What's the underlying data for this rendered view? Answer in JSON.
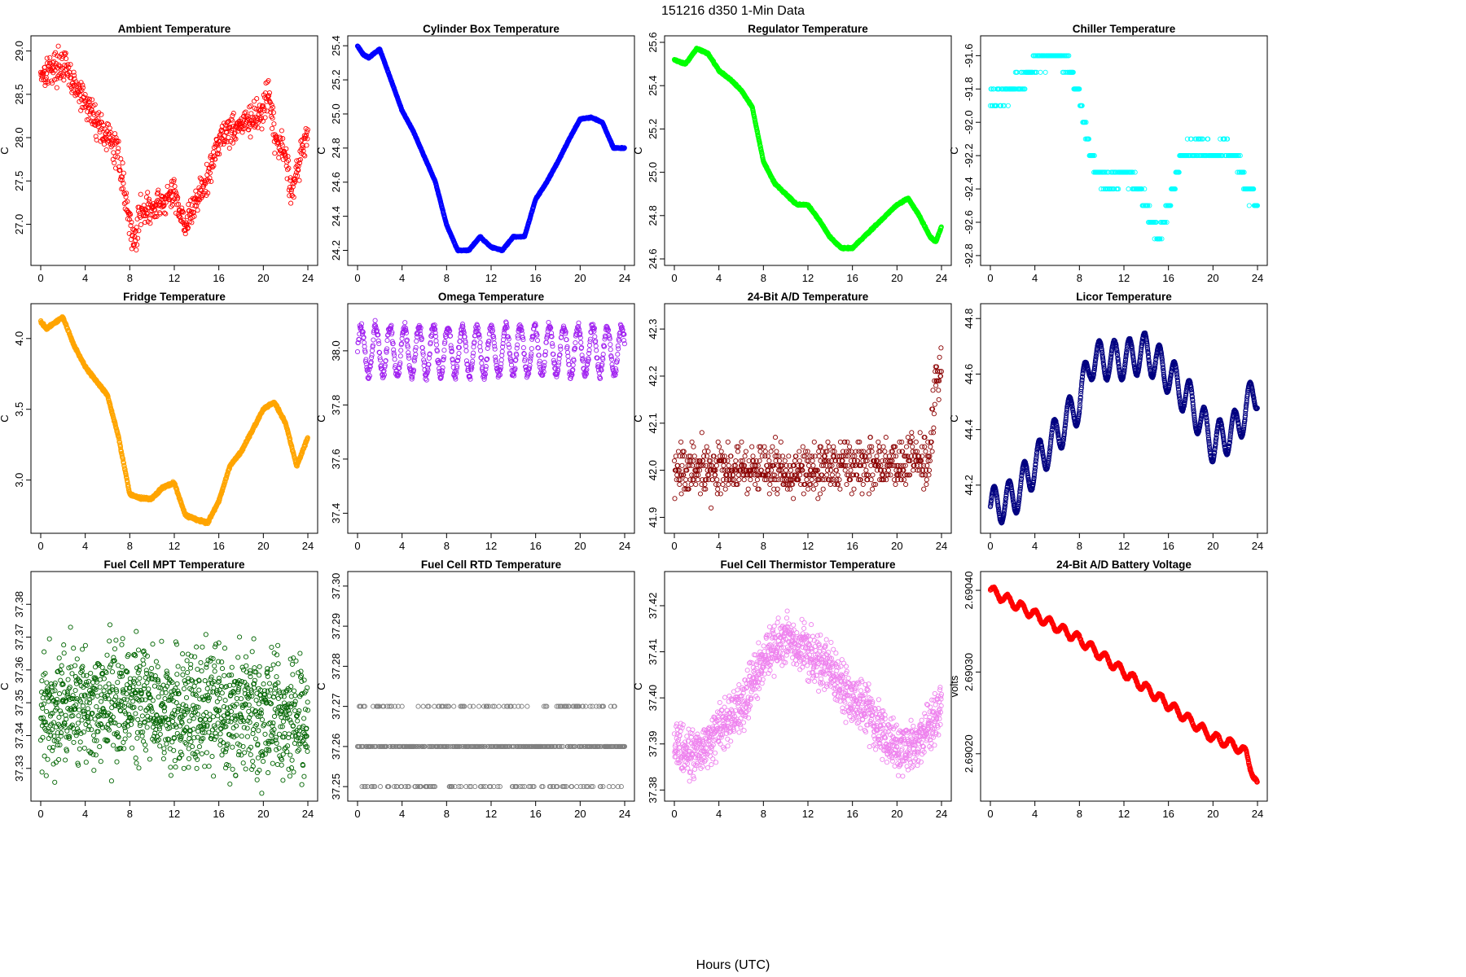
{
  "figure": {
    "title": "151216    d350    1-Min Data",
    "xlabel": "Hours (UTC)"
  },
  "chart_data": [
    {
      "type": "scatter",
      "title": "Ambient Temperature",
      "ylabel": "C",
      "color": "#ff0000",
      "xlim": [
        0,
        24
      ],
      "ylim": [
        26.6,
        29.1
      ],
      "xticks": [
        "0",
        "4",
        "8",
        "12",
        "16",
        "20",
        "24"
      ],
      "yticks": [
        "27.0",
        "27.5",
        "28.0",
        "28.5",
        "29.0"
      ],
      "x": [
        0,
        1,
        2,
        3,
        4,
        5,
        6,
        7,
        8,
        8.5,
        9,
        10,
        11,
        12,
        13,
        13.5,
        14,
        15,
        16,
        17,
        18,
        19,
        20,
        20.5,
        21,
        22,
        22.5,
        23,
        24
      ],
      "y": [
        28.75,
        28.8,
        28.85,
        28.6,
        28.4,
        28.2,
        28.0,
        27.8,
        27.0,
        26.8,
        27.2,
        27.15,
        27.25,
        27.35,
        27.0,
        27.1,
        27.3,
        27.5,
        28.0,
        28.1,
        28.15,
        28.2,
        28.3,
        28.5,
        28.0,
        27.8,
        27.4,
        27.6,
        28.1
      ],
      "noise": 0.2,
      "step": 0.033
    },
    {
      "type": "scatter",
      "title": "Cylinder Box Temperature",
      "ylabel": "C",
      "color": "#0000ff",
      "xlim": [
        0,
        24
      ],
      "ylim": [
        24.15,
        25.42
      ],
      "xticks": [
        "0",
        "4",
        "8",
        "12",
        "16",
        "20",
        "24"
      ],
      "yticks": [
        "24.2",
        "24.4",
        "24.6",
        "24.8",
        "25.0",
        "25.2",
        "25.4"
      ],
      "x": [
        0,
        0.5,
        1,
        2,
        3,
        4,
        5,
        6,
        7,
        8,
        9,
        10,
        11,
        12,
        13,
        14,
        15,
        16,
        17,
        18,
        19,
        20,
        21,
        22,
        23,
        24
      ],
      "y": [
        25.4,
        25.35,
        25.33,
        25.38,
        25.2,
        25.02,
        24.9,
        24.75,
        24.6,
        24.35,
        24.2,
        24.2,
        24.28,
        24.22,
        24.2,
        24.28,
        24.28,
        24.5,
        24.6,
        24.72,
        24.85,
        24.97,
        24.98,
        24.95,
        24.8,
        24.8
      ],
      "noise": 0.004,
      "step": 0.017
    },
    {
      "type": "scatter",
      "title": "Regulator Temperature",
      "ylabel": "C",
      "color": "#00ff00",
      "xlim": [
        0,
        24
      ],
      "ylim": [
        24.6,
        25.6
      ],
      "xticks": [
        "0",
        "4",
        "8",
        "12",
        "16",
        "20",
        "24"
      ],
      "yticks": [
        "24.6",
        "24.8",
        "25.0",
        "25.2",
        "25.4",
        "25.6"
      ],
      "x": [
        0,
        1,
        2,
        3,
        4,
        5,
        6,
        7,
        8,
        9,
        10,
        11,
        12,
        13,
        14,
        15,
        16,
        17,
        18,
        19,
        20,
        21,
        22,
        23,
        23.5,
        24
      ],
      "y": [
        25.52,
        25.5,
        25.57,
        25.55,
        25.47,
        25.43,
        25.38,
        25.3,
        25.05,
        24.95,
        24.9,
        24.85,
        24.85,
        24.78,
        24.7,
        24.65,
        24.65,
        24.7,
        24.75,
        24.8,
        24.85,
        24.88,
        24.8,
        24.7,
        24.68,
        24.75
      ],
      "noise": 0.004,
      "step": 0.017
    },
    {
      "type": "scatter",
      "title": "Chiller Temperature",
      "ylabel": "C",
      "color": "#00ffff",
      "xlim": [
        0,
        24
      ],
      "ylim": [
        -92.82,
        -91.52
      ],
      "xticks": [
        "0",
        "4",
        "8",
        "12",
        "16",
        "20",
        "24"
      ],
      "yticks": [
        "-92.8",
        "-92.6",
        "-92.4",
        "-92.2",
        "-92.0",
        "-91.8",
        "-91.6"
      ],
      "x": [
        0,
        1,
        2,
        3,
        4,
        5,
        6,
        7,
        8,
        9,
        10,
        11,
        12,
        13,
        14,
        15,
        16,
        17,
        18,
        19,
        20,
        21,
        22,
        23,
        24
      ],
      "y": [
        -91.85,
        -91.85,
        -91.8,
        -91.75,
        -91.65,
        -91.6,
        -91.62,
        -91.65,
        -91.85,
        -92.2,
        -92.35,
        -92.35,
        -92.3,
        -92.35,
        -92.5,
        -92.7,
        -92.5,
        -92.25,
        -92.15,
        -92.15,
        -92.2,
        -92.15,
        -92.2,
        -92.4,
        -92.5
      ],
      "noise": 0.05,
      "step": 0.05,
      "quantum": 0.1
    },
    {
      "type": "scatter",
      "title": "Fridge Temperature",
      "ylabel": "C",
      "color": "#ffa500",
      "xlim": [
        0,
        24
      ],
      "ylim": [
        2.67,
        4.2
      ],
      "xticks": [
        "0",
        "4",
        "8",
        "12",
        "16",
        "20",
        "24"
      ],
      "yticks": [
        "3.0",
        "3.5",
        "4.0"
      ],
      "x": [
        0,
        0.5,
        1,
        2,
        3,
        4,
        5,
        6,
        7,
        8,
        9,
        10,
        11,
        12,
        13,
        14,
        15,
        16,
        17,
        18,
        19,
        20,
        21,
        22,
        23,
        24
      ],
      "y": [
        4.12,
        4.07,
        4.1,
        4.15,
        3.95,
        3.8,
        3.7,
        3.6,
        3.3,
        2.9,
        2.87,
        2.87,
        2.95,
        2.98,
        2.75,
        2.72,
        2.7,
        2.85,
        3.1,
        3.2,
        3.35,
        3.5,
        3.55,
        3.4,
        3.1,
        3.3
      ],
      "noise": 0.01,
      "step": 0.017
    },
    {
      "type": "scatter",
      "title": "Omega Temperature",
      "ylabel": "C",
      "color": "#a020f0",
      "xlim": [
        0,
        24
      ],
      "ylim": [
        37.35,
        38.15
      ],
      "xticks": [
        "0",
        "4",
        "8",
        "12",
        "16",
        "20",
        "24"
      ],
      "yticks": [
        "37.4",
        "37.6",
        "37.8",
        "38.0"
      ],
      "x": [
        0,
        4,
        8,
        12,
        16,
        20,
        24
      ],
      "y": [
        38.0,
        38.0,
        38.0,
        38.0,
        38.0,
        38.0,
        38.0
      ],
      "noise": 0.02,
      "step": 0.033,
      "osc_amp": 0.09,
      "osc_period": 1.3
    },
    {
      "type": "scatter",
      "title": "24-Bit A/D Temperature",
      "ylabel": "C",
      "color": "#8b0000",
      "xlim": [
        0,
        24
      ],
      "ylim": [
        41.88,
        42.34
      ],
      "xticks": [
        "0",
        "4",
        "8",
        "12",
        "16",
        "20",
        "24"
      ],
      "yticks": [
        "41.9",
        "42.0",
        "42.1",
        "42.2",
        "42.3"
      ],
      "x": [
        0,
        4,
        8,
        12,
        16,
        20,
        23,
        23.5,
        24
      ],
      "y": [
        42.0,
        42.0,
        42.0,
        42.0,
        42.01,
        42.02,
        42.02,
        42.2,
        42.2
      ],
      "noise": 0.06,
      "step": 0.033,
      "quantum": 0.01
    },
    {
      "type": "scatter",
      "title": "Licor Temperature",
      "ylabel": "C",
      "color": "#000080",
      "xlim": [
        0,
        24
      ],
      "ylim": [
        44.05,
        44.83
      ],
      "xticks": [
        "0",
        "4",
        "8",
        "12",
        "16",
        "20",
        "24"
      ],
      "yticks": [
        "44.2",
        "44.4",
        "44.6",
        "44.8"
      ],
      "x": [
        0,
        2,
        4,
        6,
        8,
        9,
        12,
        14,
        16,
        18,
        20,
        22,
        24
      ],
      "y": [
        44.12,
        44.15,
        44.27,
        44.38,
        44.5,
        44.65,
        44.65,
        44.68,
        44.6,
        44.5,
        44.35,
        44.4,
        44.55
      ],
      "noise": 0.003,
      "step": 0.017,
      "osc_amp": 0.07,
      "osc_period": 1.35
    },
    {
      "type": "scatter",
      "title": "Fuel Cell MPT Temperature",
      "ylabel": "C",
      "color": "#006400",
      "xlim": [
        0,
        24
      ],
      "ylim": [
        37.322,
        37.388
      ],
      "xticks": [
        "0",
        "4",
        "8",
        "12",
        "16",
        "20",
        "24"
      ],
      "yticks": [
        "37.33",
        "37.34",
        "37.35",
        "37.36",
        "37.37",
        "37.38"
      ],
      "x": [
        0,
        6,
        12,
        18,
        24
      ],
      "y": [
        37.348,
        37.35,
        37.348,
        37.347,
        37.346
      ],
      "noise": 0.02,
      "step": 0.02
    },
    {
      "type": "scatter",
      "title": "Fuel Cell RTD Temperature",
      "ylabel": "C",
      "color": "#808080",
      "xlim": [
        0,
        24
      ],
      "ylim": [
        37.248,
        37.302
      ],
      "xticks": [
        "0",
        "4",
        "8",
        "12",
        "16",
        "20",
        "24"
      ],
      "yticks": [
        "37.25",
        "37.26",
        "37.27",
        "37.28",
        "37.29",
        "37.30"
      ],
      "x": [
        0,
        24
      ],
      "y": [
        37.26,
        37.26
      ],
      "noise": 0.012,
      "step": 0.05,
      "quantum": 0.01
    },
    {
      "type": "scatter",
      "title": "Fuel Cell Thermistor Temperature",
      "ylabel": "C",
      "color": "#ee82ee",
      "xlim": [
        0,
        24
      ],
      "ylim": [
        37.379,
        37.426
      ],
      "xticks": [
        "0",
        "4",
        "8",
        "12",
        "16",
        "20",
        "24"
      ],
      "yticks": [
        "37.38",
        "37.39",
        "37.40",
        "37.41",
        "37.42"
      ],
      "x": [
        0,
        2,
        4,
        6,
        8,
        10,
        12,
        14,
        16,
        18,
        20,
        22,
        24
      ],
      "y": [
        37.389,
        37.388,
        37.393,
        37.398,
        37.408,
        37.413,
        37.41,
        37.406,
        37.4,
        37.395,
        37.389,
        37.39,
        37.398
      ],
      "noise": 0.006,
      "step": 0.02
    },
    {
      "type": "scatter",
      "title": "24-Bit A/D Battery Voltage",
      "ylabel": "volts",
      "color": "#ff0000",
      "xlim": [
        0,
        24
      ],
      "ylim": [
        2.69015,
        2.690415
      ],
      "xticks": [
        "0",
        "4",
        "8",
        "12",
        "16",
        "20",
        "24"
      ],
      "yticks": [
        "2.69020",
        "2.69030",
        "2.69040"
      ],
      "x": [
        0,
        4,
        8,
        12,
        16,
        20,
        22,
        23,
        24
      ],
      "y": [
        2.6904,
        2.69037,
        2.69034,
        2.6903,
        2.69026,
        2.69022,
        2.69021,
        2.6902,
        2.69016
      ],
      "noise": 1.5e-06,
      "step": 0.017,
      "osc_amp": 5.5e-06,
      "osc_period": 1.25
    }
  ]
}
